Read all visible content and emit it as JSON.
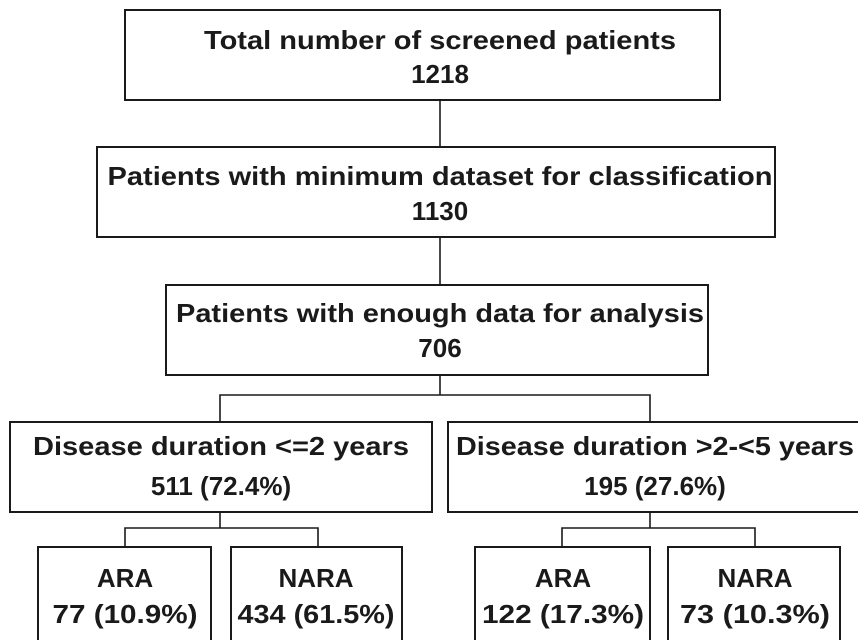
{
  "nodes": [
    {
      "label": "Total number of screened patients",
      "count": "1218"
    },
    {
      "label": "Patients with minimum dataset for classification",
      "count": "1130"
    },
    {
      "label": "Patients with enough data for analysis",
      "count": "706"
    },
    {
      "label": "Disease duration <=2 years",
      "count": "511 (72.4%)"
    },
    {
      "label": "Disease duration >2-<5 years",
      "count": "195 (27.6%)"
    },
    {
      "label": "ARA",
      "count": "77 (10.9%)"
    },
    {
      "label": "NARA",
      "count": "434 (61.5%)"
    },
    {
      "label": "ARA",
      "count": "122 (17.3%)"
    },
    {
      "label": "NARA",
      "count": "73 (10.3%)"
    }
  ]
}
